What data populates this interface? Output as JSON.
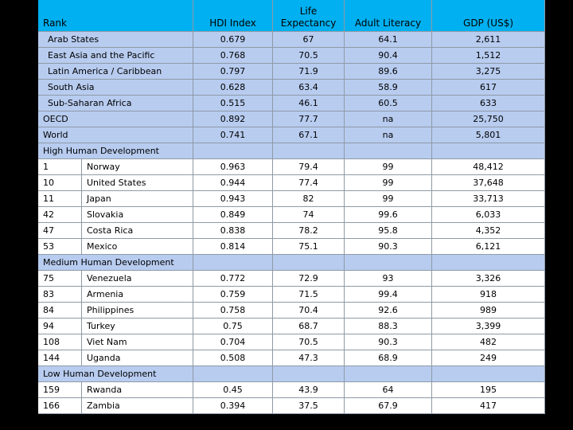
{
  "headers": {
    "rank": "Rank",
    "hdi": "HDI Index",
    "life": "Life Expectancy",
    "literacy": "Adult Literacy",
    "gdp": "GDP (US$)"
  },
  "regions": [
    {
      "name": "Arab States",
      "hdi": "0.679",
      "life": "67",
      "literacy": "64.1",
      "gdp": "2,611"
    },
    {
      "name": "East Asia and the Pacific",
      "hdi": "0.768",
      "life": "70.5",
      "literacy": "90.4",
      "gdp": "1,512"
    },
    {
      "name": "Latin America / Caribbean",
      "hdi": "0.797",
      "life": "71.9",
      "literacy": "89.6",
      "gdp": "3,275"
    },
    {
      "name": "South Asia",
      "hdi": "0.628",
      "life": "63.4",
      "literacy": "58.9",
      "gdp": "617"
    },
    {
      "name": "Sub-Saharan Africa",
      "hdi": "0.515",
      "life": "46.1",
      "literacy": "60.5",
      "gdp": "633"
    },
    {
      "name": "OECD",
      "hdi": "0.892",
      "life": "77.7",
      "literacy": "na",
      "gdp": "25,750"
    },
    {
      "name": "World",
      "hdi": "0.741",
      "life": "67.1",
      "literacy": "na",
      "gdp": "5,801"
    }
  ],
  "sections": [
    {
      "title": "High Human Development",
      "rows": [
        {
          "rank": "1",
          "country": "Norway",
          "hdi": "0.963",
          "life": "79.4",
          "literacy": "99",
          "gdp": "48,412"
        },
        {
          "rank": "10",
          "country": "United States",
          "hdi": "0.944",
          "life": "77.4",
          "literacy": "99",
          "gdp": "37,648"
        },
        {
          "rank": "11",
          "country": "Japan",
          "hdi": "0.943",
          "life": "82",
          "literacy": "99",
          "gdp": "33,713"
        },
        {
          "rank": "42",
          "country": "Slovakia",
          "hdi": "0.849",
          "life": "74",
          "literacy": "99.6",
          "gdp": "6,033"
        },
        {
          "rank": "47",
          "country": "Costa Rica",
          "hdi": "0.838",
          "life": "78.2",
          "literacy": "95.8",
          "gdp": "4,352"
        },
        {
          "rank": "53",
          "country": "Mexico",
          "hdi": "0.814",
          "life": "75.1",
          "literacy": "90.3",
          "gdp": "6,121"
        }
      ]
    },
    {
      "title": "Medium Human Development",
      "rows": [
        {
          "rank": "75",
          "country": "Venezuela",
          "hdi": "0.772",
          "life": "72.9",
          "literacy": "93",
          "gdp": "3,326"
        },
        {
          "rank": "83",
          "country": "Armenia",
          "hdi": "0.759",
          "life": "71.5",
          "literacy": "99.4",
          "gdp": "918"
        },
        {
          "rank": "84",
          "country": "Philippines",
          "hdi": "0.758",
          "life": "70.4",
          "literacy": "92.6",
          "gdp": "989"
        },
        {
          "rank": "94",
          "country": "Turkey",
          "hdi": "0.75",
          "life": "68.7",
          "literacy": "88.3",
          "gdp": "3,399"
        },
        {
          "rank": "108",
          "country": "Viet Nam",
          "hdi": "0.704",
          "life": "70.5",
          "literacy": "90.3",
          "gdp": "482"
        },
        {
          "rank": "144",
          "country": "Uganda",
          "hdi": "0.508",
          "life": "47.3",
          "literacy": "68.9",
          "gdp": "249"
        }
      ]
    },
    {
      "title": "Low Human Development",
      "rows": [
        {
          "rank": "159",
          "country": "Rwanda",
          "hdi": "0.45",
          "life": "43.9",
          "literacy": "64",
          "gdp": "195"
        },
        {
          "rank": "166",
          "country": "Zambia",
          "hdi": "0.394",
          "life": "37.5",
          "literacy": "67.9",
          "gdp": "417"
        }
      ]
    }
  ]
}
